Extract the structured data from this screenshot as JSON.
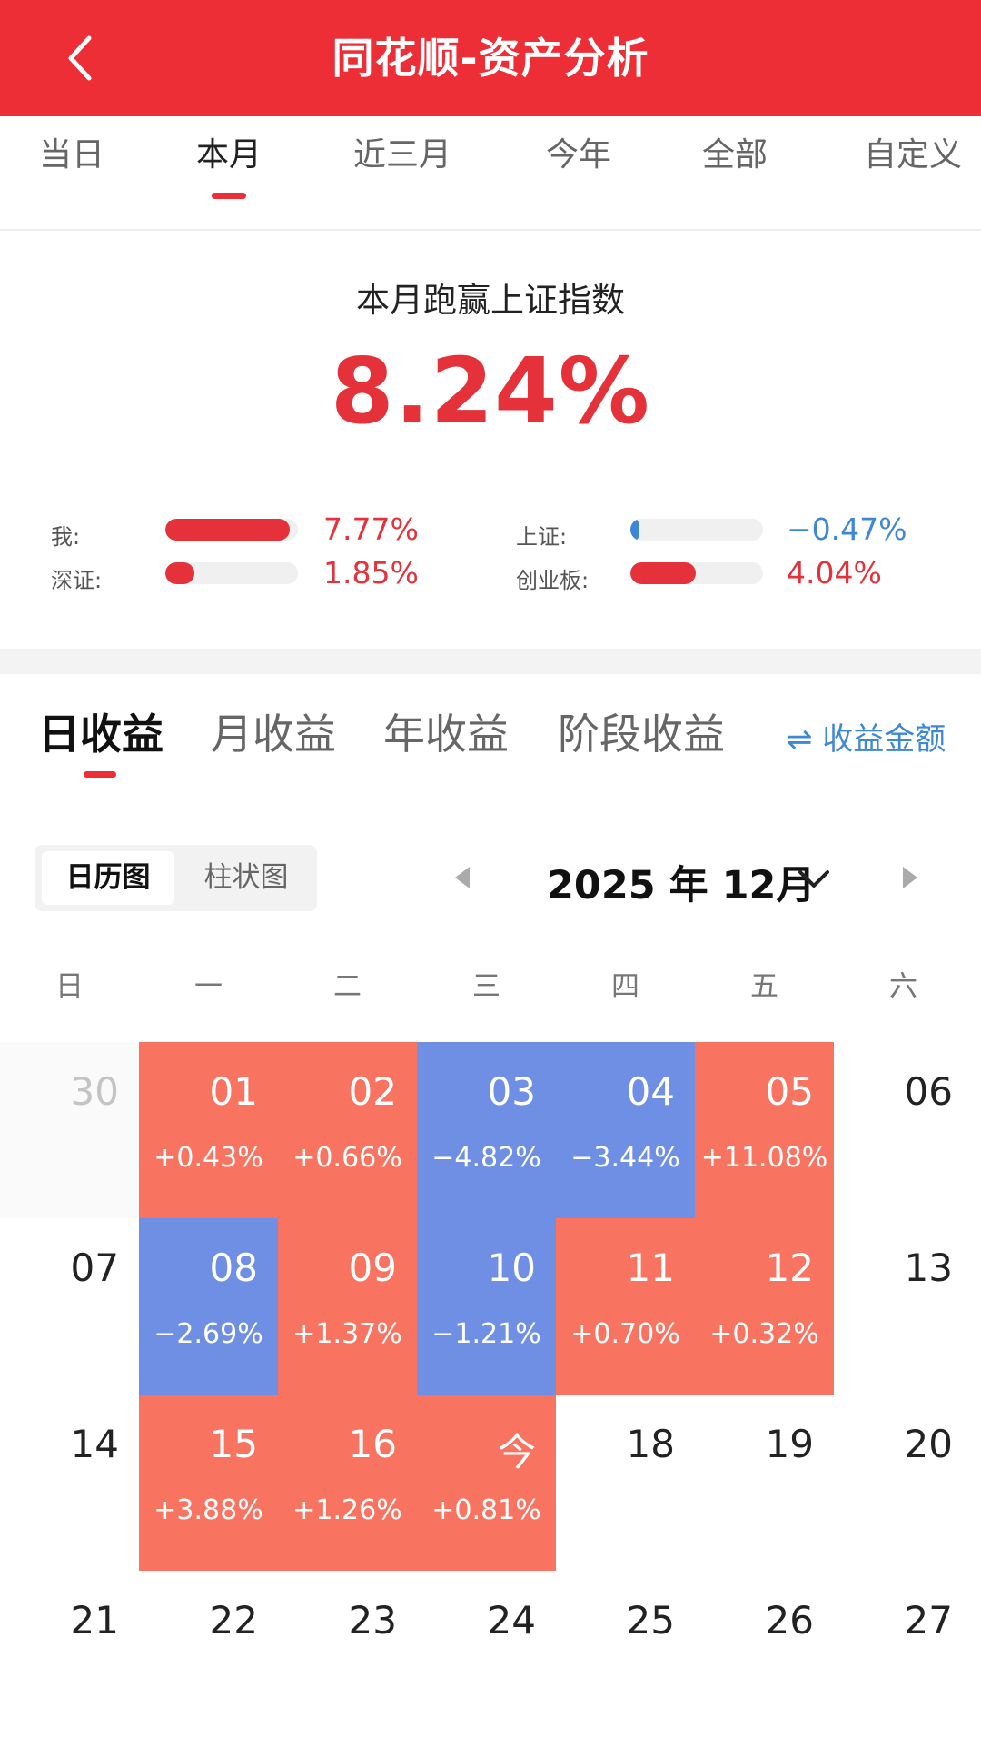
{
  "header": {
    "title": "同花顺-资产分析"
  },
  "period_tabs": [
    "当日",
    "本月",
    "近三月",
    "今年",
    "全部",
    "自定义"
  ],
  "summary": {
    "title": "本月跑赢上证指数",
    "value": "8.24%"
  },
  "comparisons": [
    {
      "label": "我:",
      "value": "7.77%",
      "fraction": 0.94,
      "color": "#e4313a"
    },
    {
      "label": "上证:",
      "value": "−0.47%",
      "fraction": 0.06,
      "color": "#3d87d6"
    },
    {
      "label": "深证:",
      "value": "1.85%",
      "fraction": 0.22,
      "color": "#e4313a"
    },
    {
      "label": "创业板:",
      "value": "4.04%",
      "fraction": 0.49,
      "color": "#e4313a"
    }
  ],
  "returns_tabs": [
    "日收益",
    "月收益",
    "年收益",
    "阶段收益"
  ],
  "toggle_amount": "⇌ 收益金额",
  "view_switch": {
    "calendar": "日历图",
    "bar": "柱状图"
  },
  "month_label": "2025 年 12月",
  "weekdays": [
    "日",
    "一",
    "二",
    "三",
    "四",
    "五",
    "六"
  ],
  "colors": {
    "brand": "#ee2e37",
    "gain": "#f87461",
    "loss": "#6e8fe4"
  },
  "calendar": {
    "rows": [
      [
        {
          "day": "30",
          "state": "prev"
        },
        {
          "day": "01",
          "pct": "+0.43%",
          "state": "gain"
        },
        {
          "day": "02",
          "pct": "+0.66%",
          "state": "gain"
        },
        {
          "day": "03",
          "pct": "−4.82%",
          "state": "loss"
        },
        {
          "day": "04",
          "pct": "−3.44%",
          "state": "loss"
        },
        {
          "day": "05",
          "pct": "+11.08%",
          "state": "gain"
        },
        {
          "day": "06",
          "state": "none"
        }
      ],
      [
        {
          "day": "07",
          "state": "none"
        },
        {
          "day": "08",
          "pct": "−2.69%",
          "state": "loss"
        },
        {
          "day": "09",
          "pct": "+1.37%",
          "state": "gain"
        },
        {
          "day": "10",
          "pct": "−1.21%",
          "state": "loss"
        },
        {
          "day": "11",
          "pct": "+0.70%",
          "state": "gain"
        },
        {
          "day": "12",
          "pct": "+0.32%",
          "state": "gain"
        },
        {
          "day": "13",
          "state": "none"
        }
      ],
      [
        {
          "day": "14",
          "state": "none"
        },
        {
          "day": "15",
          "pct": "+3.88%",
          "state": "gain"
        },
        {
          "day": "16",
          "pct": "+1.26%",
          "state": "gain"
        },
        {
          "day": "今",
          "pct": "+0.81%",
          "state": "gain"
        },
        {
          "day": "18",
          "state": "none"
        },
        {
          "day": "19",
          "state": "none"
        },
        {
          "day": "20",
          "state": "none"
        }
      ],
      [
        {
          "day": "21",
          "state": "none"
        },
        {
          "day": "22",
          "state": "none"
        },
        {
          "day": "23",
          "state": "none"
        },
        {
          "day": "24",
          "state": "none"
        },
        {
          "day": "25",
          "state": "none"
        },
        {
          "day": "26",
          "state": "none"
        },
        {
          "day": "27",
          "state": "none"
        }
      ]
    ]
  }
}
